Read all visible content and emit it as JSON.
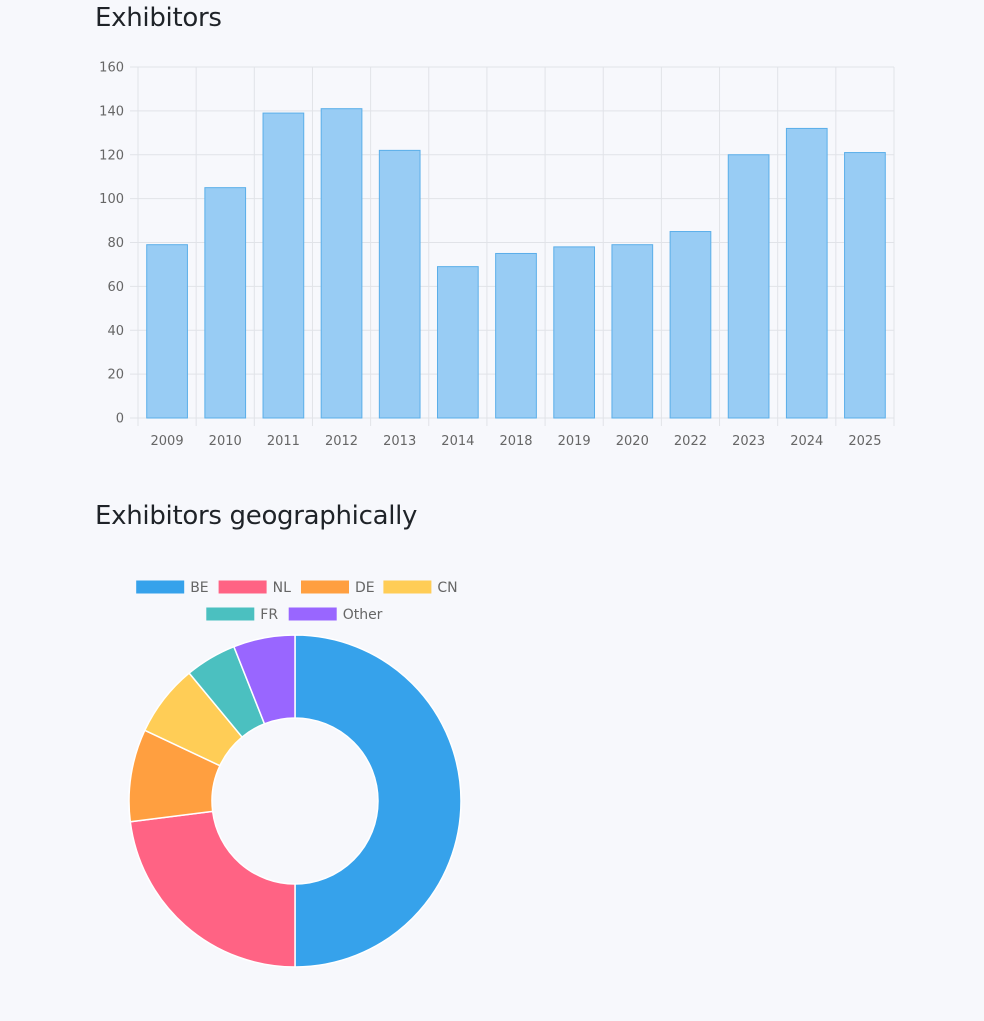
{
  "sections": {
    "bar_title": "Exhibitors",
    "pie_title": "Exhibitors geographically"
  },
  "colors": {
    "bar_fill": "#98ccf4",
    "bar_stroke": "#5aaee9",
    "grid": "#e1e3e8",
    "BE": "#36a2eb",
    "NL": "#ff6384",
    "DE": "#ff9f40",
    "CN": "#ffcd56",
    "FR": "#4bc0c0",
    "Other": "#9966ff"
  },
  "chart_data": [
    {
      "type": "bar",
      "title": "Exhibitors",
      "categories": [
        "2009",
        "2010",
        "2011",
        "2012",
        "2013",
        "2014",
        "2018",
        "2019",
        "2020",
        "2022",
        "2023",
        "2024",
        "2025"
      ],
      "values": [
        79,
        105,
        139,
        141,
        122,
        69,
        75,
        78,
        79,
        85,
        120,
        132,
        121
      ],
      "ylim": [
        0,
        160
      ],
      "yticks": [
        0,
        20,
        40,
        60,
        80,
        100,
        120,
        140,
        160
      ],
      "grid": true,
      "legend": "none"
    },
    {
      "type": "pie",
      "title": "Exhibitors geographically",
      "variant": "doughnut",
      "labels": [
        "BE",
        "NL",
        "DE",
        "CN",
        "FR",
        "Other"
      ],
      "values": [
        50,
        23,
        9,
        7,
        5,
        6
      ],
      "legend": "top"
    }
  ]
}
